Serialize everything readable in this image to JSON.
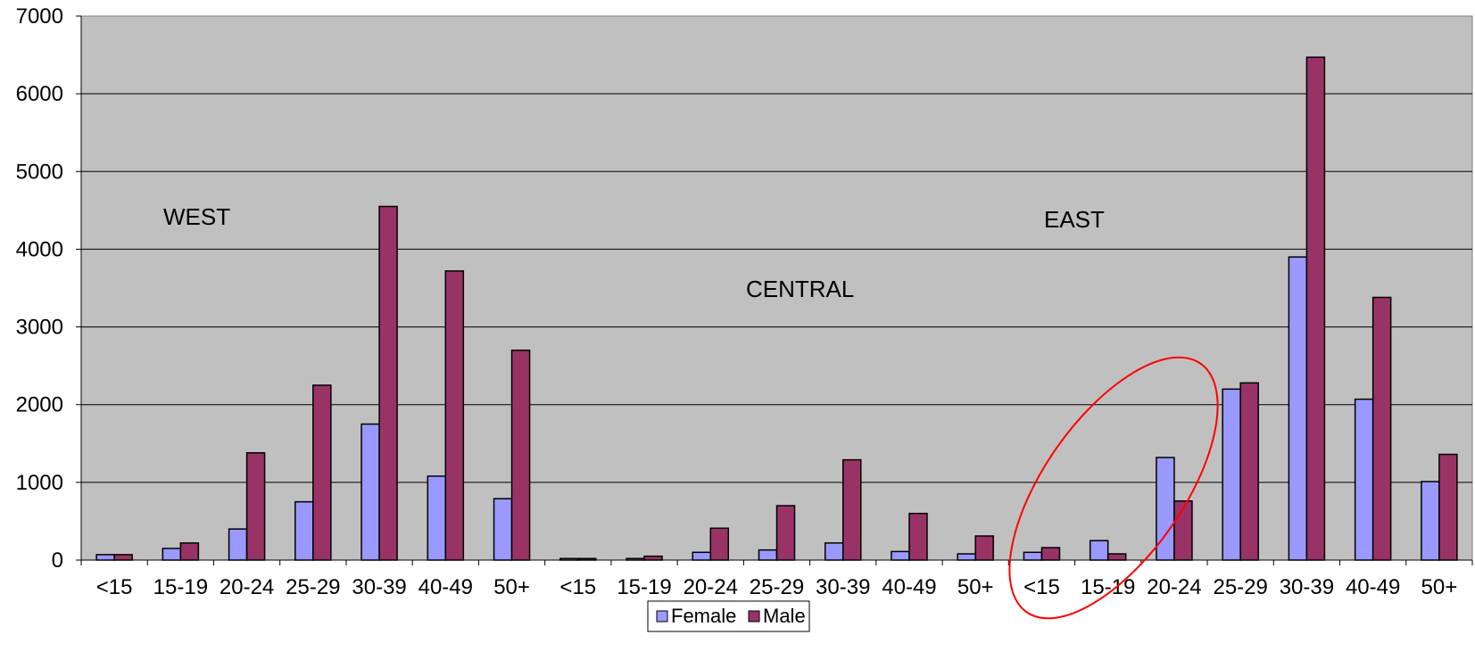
{
  "chart_data": {
    "type": "bar",
    "title": "",
    "xlabel": "",
    "ylabel": "",
    "ylim": [
      0,
      7000
    ],
    "yticks": [
      0,
      1000,
      2000,
      3000,
      4000,
      5000,
      6000,
      7000
    ],
    "grid": true,
    "categories": [
      "<15",
      "15-19",
      "20-24",
      "25-29",
      "30-39",
      "40-49",
      "50+",
      "<15",
      "15-19",
      "20-24",
      "25-29",
      "30-39",
      "40-49",
      "50+",
      "<15",
      "15-19",
      "20-24",
      "25-29",
      "30-39",
      "40-49",
      "50+"
    ],
    "series": [
      {
        "name": "Female",
        "color": "#9999ff",
        "values": [
          70,
          150,
          400,
          750,
          1750,
          1080,
          790,
          20,
          20,
          100,
          130,
          220,
          110,
          80,
          100,
          250,
          1320,
          2200,
          3900,
          2070,
          1010
        ]
      },
      {
        "name": "Male",
        "color": "#993366",
        "values": [
          70,
          220,
          1380,
          2250,
          4550,
          3720,
          2700,
          20,
          50,
          410,
          700,
          1290,
          600,
          310,
          160,
          80,
          760,
          2280,
          6470,
          3380,
          1360
        ]
      }
    ],
    "region_labels": [
      "WEST",
      "CENTRAL",
      "EAST"
    ],
    "legend_position": "bottom",
    "annotation": {
      "shape": "ellipse",
      "color": "#ff0000"
    }
  }
}
